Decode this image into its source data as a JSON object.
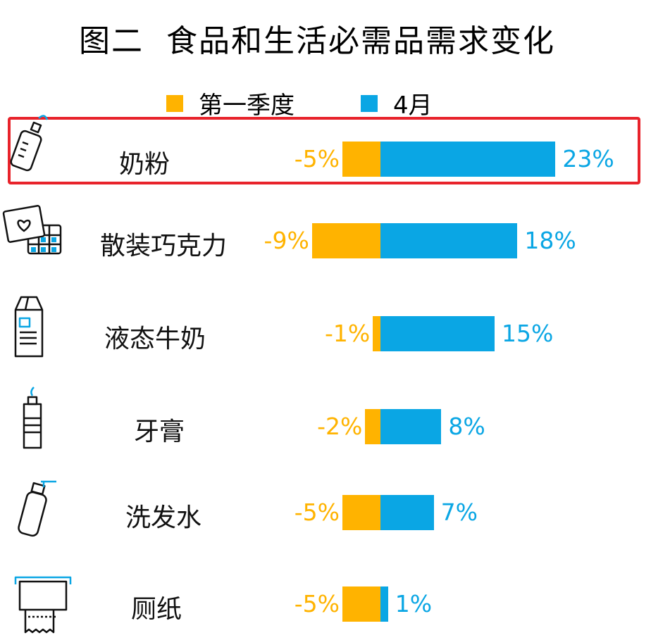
{
  "title": "图二  食品和生活必需品需求变化",
  "colors": {
    "q1": "#FFB300",
    "april": "#0AA6E4",
    "highlight": "#E8232B"
  },
  "legend": [
    {
      "label": "第一季度",
      "color": "#FFB300"
    },
    {
      "label": "4月",
      "color": "#0AA6E4"
    }
  ],
  "highlighted_category": "奶粉",
  "chart_data": {
    "type": "bar",
    "orientation": "horizontal",
    "title": "图二  食品和生活必需品需求变化",
    "categories": [
      "奶粉",
      "散装巧克力",
      "液态牛奶",
      "牙膏",
      "洗发水",
      "厕纸"
    ],
    "category_icons": [
      "baby-bottle-icon",
      "chocolate-icon",
      "milk-carton-icon",
      "toothpaste-icon",
      "shampoo-bottle-icon",
      "toilet-paper-icon"
    ],
    "series": [
      {
        "name": "第一季度",
        "values": [
          -5,
          -9,
          -1,
          -2,
          -5,
          -5
        ],
        "labels": [
          "-5%",
          "-9%",
          "-1%",
          "-2%",
          "-5%",
          "-5%"
        ]
      },
      {
        "name": "4月",
        "values": [
          23,
          18,
          15,
          8,
          7,
          1
        ],
        "labels": [
          "23%",
          "18%",
          "15%",
          "8%",
          "7%",
          "1%"
        ]
      }
    ],
    "unit": "%",
    "legend_position": "top",
    "grid": false
  }
}
